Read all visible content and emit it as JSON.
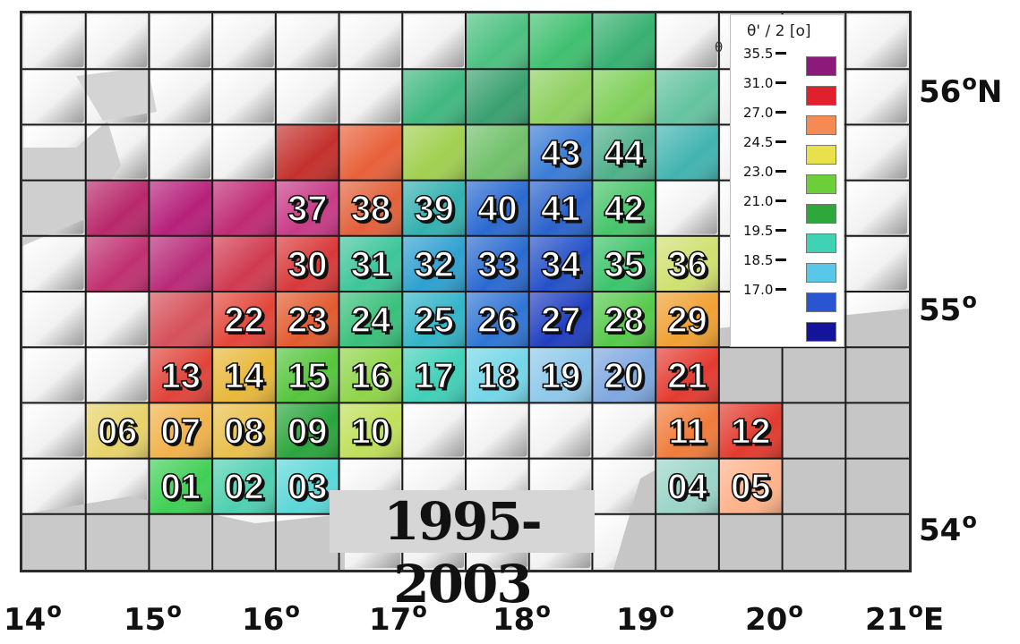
{
  "map": {
    "period": "1995-2003",
    "theta_mark": "θ",
    "latitude_labels": [
      {
        "value": "56",
        "suffix": "N"
      },
      {
        "value": "55",
        "suffix": ""
      },
      {
        "value": "54",
        "suffix": ""
      }
    ],
    "longitude_labels": [
      {
        "value": "14",
        "suffix": ""
      },
      {
        "value": "15",
        "suffix": ""
      },
      {
        "value": "16",
        "suffix": ""
      },
      {
        "value": "17",
        "suffix": ""
      },
      {
        "value": "18",
        "suffix": ""
      },
      {
        "value": "19",
        "suffix": ""
      },
      {
        "value": "20",
        "suffix": ""
      },
      {
        "value": "21",
        "suffix": "E"
      }
    ],
    "degree_symbol": "o",
    "grid": {
      "cols": 14,
      "rows": 10
    },
    "cells": [
      {
        "id": "01",
        "col": 2,
        "row": 8,
        "color": "#3fcf55"
      },
      {
        "id": "02",
        "col": 3,
        "row": 8,
        "color": "#4fd0b0"
      },
      {
        "id": "03",
        "col": 4,
        "row": 8,
        "color": "#5bd7d8"
      },
      {
        "id": "04",
        "col": 10,
        "row": 8,
        "color": "#9bd4c8"
      },
      {
        "id": "05",
        "col": 11,
        "row": 8,
        "color": "#ffb28a"
      },
      {
        "id": "06",
        "col": 1,
        "row": 7,
        "color": "#e7d36a"
      },
      {
        "id": "07",
        "col": 2,
        "row": 7,
        "color": "#f1b24a"
      },
      {
        "id": "08",
        "col": 3,
        "row": 7,
        "color": "#e9c04b"
      },
      {
        "id": "09",
        "col": 4,
        "row": 7,
        "color": "#2aa53c"
      },
      {
        "id": "10",
        "col": 5,
        "row": 7,
        "color": "#bfe05a"
      },
      {
        "id": "11",
        "col": 10,
        "row": 7,
        "color": "#f07b3b"
      },
      {
        "id": "12",
        "col": 11,
        "row": 7,
        "color": "#e23a2e"
      },
      {
        "id": "13",
        "col": 2,
        "row": 6,
        "color": "#e0433a"
      },
      {
        "id": "14",
        "col": 3,
        "row": 6,
        "color": "#e8b83a"
      },
      {
        "id": "15",
        "col": 4,
        "row": 6,
        "color": "#55c53c"
      },
      {
        "id": "16",
        "col": 5,
        "row": 6,
        "color": "#8fd54a"
      },
      {
        "id": "17",
        "col": 6,
        "row": 6,
        "color": "#40d0b8"
      },
      {
        "id": "18",
        "col": 7,
        "row": 6,
        "color": "#73d6e8"
      },
      {
        "id": "19",
        "col": 8,
        "row": 6,
        "color": "#8ec8ea"
      },
      {
        "id": "20",
        "col": 9,
        "row": 6,
        "color": "#7fa8e0"
      },
      {
        "id": "21",
        "col": 10,
        "row": 6,
        "color": "#e43a30"
      },
      {
        "id": "22",
        "col": 3,
        "row": 5,
        "color": "#e3453a"
      },
      {
        "id": "23",
        "col": 4,
        "row": 5,
        "color": "#e25a2e"
      },
      {
        "id": "24",
        "col": 5,
        "row": 5,
        "color": "#38c07a"
      },
      {
        "id": "25",
        "col": 6,
        "row": 5,
        "color": "#32b4c8"
      },
      {
        "id": "26",
        "col": 7,
        "row": 5,
        "color": "#2f74d4"
      },
      {
        "id": "27",
        "col": 8,
        "row": 5,
        "color": "#1f3ec0"
      },
      {
        "id": "28",
        "col": 9,
        "row": 5,
        "color": "#56c94a"
      },
      {
        "id": "29",
        "col": 10,
        "row": 5,
        "color": "#f0a030"
      },
      {
        "id": "30",
        "col": 4,
        "row": 4,
        "color": "#d83838"
      },
      {
        "id": "31",
        "col": 5,
        "row": 4,
        "color": "#3ec59a"
      },
      {
        "id": "32",
        "col": 6,
        "row": 4,
        "color": "#2fa0d0"
      },
      {
        "id": "33",
        "col": 7,
        "row": 4,
        "color": "#2a6ad0"
      },
      {
        "id": "34",
        "col": 8,
        "row": 4,
        "color": "#2450c8"
      },
      {
        "id": "35",
        "col": 9,
        "row": 4,
        "color": "#3ec46a"
      },
      {
        "id": "36",
        "col": 10,
        "row": 4,
        "color": "#d0e070"
      },
      {
        "id": "37",
        "col": 4,
        "row": 3,
        "color": "#c83a86"
      },
      {
        "id": "38",
        "col": 5,
        "row": 3,
        "color": "#e2603a"
      },
      {
        "id": "39",
        "col": 6,
        "row": 3,
        "color": "#34b0b0"
      },
      {
        "id": "40",
        "col": 7,
        "row": 3,
        "color": "#2a6ad0"
      },
      {
        "id": "41",
        "col": 8,
        "row": 3,
        "color": "#2a62cc"
      },
      {
        "id": "42",
        "col": 9,
        "row": 3,
        "color": "#48c46a"
      },
      {
        "id": "43",
        "col": 8,
        "row": 2,
        "color": "#3a7cd6"
      },
      {
        "id": "44",
        "col": 9,
        "row": 2,
        "color": "#4fb08a"
      }
    ],
    "unlabeled_cells": [
      {
        "col": 1,
        "row": 3,
        "color": "#b8286a"
      },
      {
        "col": 2,
        "row": 3,
        "color": "#b6207a"
      },
      {
        "col": 3,
        "row": 3,
        "color": "#c02a74"
      },
      {
        "col": 1,
        "row": 4,
        "color": "#c03070"
      },
      {
        "col": 2,
        "row": 4,
        "color": "#b82a78"
      },
      {
        "col": 3,
        "row": 4,
        "color": "#d03a50"
      },
      {
        "col": 2,
        "row": 5,
        "color": "#d6505a"
      },
      {
        "col": 4,
        "row": 2,
        "color": "#c4302c"
      },
      {
        "col": 5,
        "row": 2,
        "color": "#e8603a"
      },
      {
        "col": 6,
        "row": 2,
        "color": "#a0d050"
      },
      {
        "col": 7,
        "row": 2,
        "color": "#70c06a"
      },
      {
        "col": 6,
        "row": 1,
        "color": "#40b880"
      },
      {
        "col": 7,
        "row": 1,
        "color": "#3aa070"
      },
      {
        "col": 8,
        "row": 1,
        "color": "#8ed060"
      },
      {
        "col": 9,
        "row": 1,
        "color": "#7fcf5a"
      },
      {
        "col": 7,
        "row": 0,
        "color": "#4cc080"
      },
      {
        "col": 8,
        "row": 0,
        "color": "#40c070"
      },
      {
        "col": 9,
        "row": 0,
        "color": "#38b070"
      },
      {
        "col": 10,
        "row": 1,
        "color": "#64c3a0"
      },
      {
        "col": 10,
        "row": 2,
        "color": "#42b4b0"
      }
    ]
  },
  "legend": {
    "title": "θ' / 2 [o]",
    "entries": [
      {
        "label": "35.5",
        "color": "#8c1a7a"
      },
      {
        "label": "31.0",
        "color": "#e0202c"
      },
      {
        "label": "27.0",
        "color": "#f58a52"
      },
      {
        "label": "24.5",
        "color": "#e8e14a"
      },
      {
        "label": "23.0",
        "color": "#6ccf3a"
      },
      {
        "label": "21.0",
        "color": "#2ea83a"
      },
      {
        "label": "19.5",
        "color": "#3fd2b4"
      },
      {
        "label": "18.5",
        "color": "#58c7e8"
      },
      {
        "label": "17.0",
        "color": "#2a55d0"
      },
      {
        "label": "",
        "color": "#14149a"
      }
    ]
  }
}
